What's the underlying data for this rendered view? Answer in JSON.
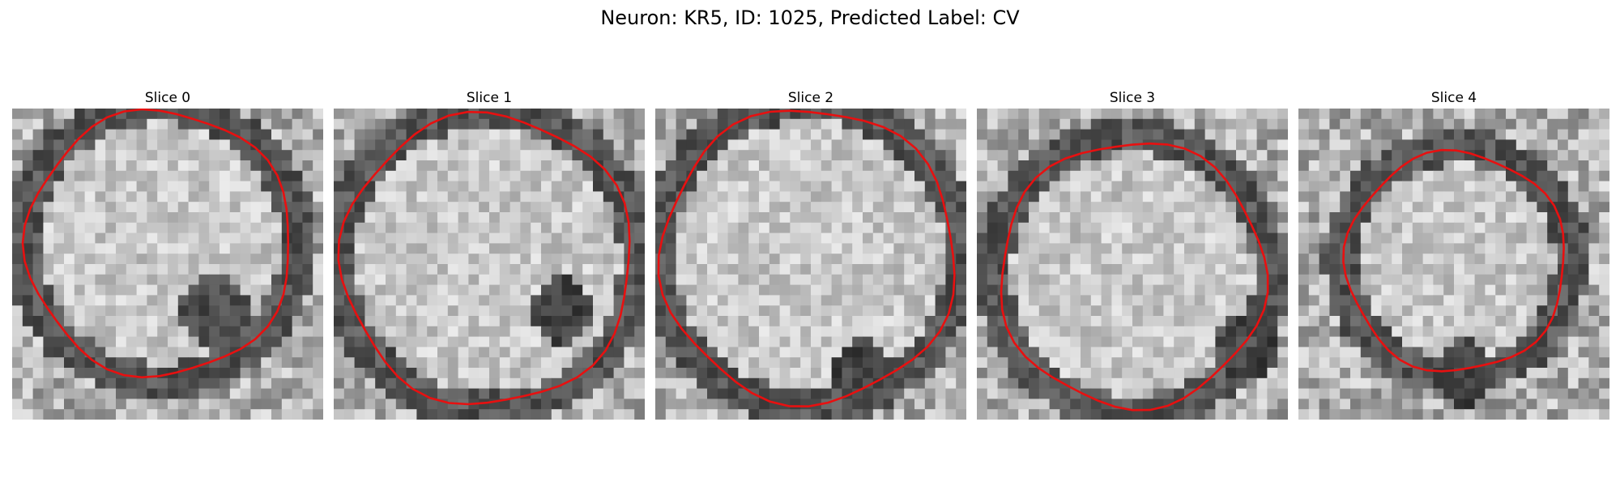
{
  "title": "Neuron: KR5, ID: 1025, Predicted Label: CV",
  "panels": [
    {
      "title": "Slice 0"
    },
    {
      "title": "Slice 1"
    },
    {
      "title": "Slice 2"
    },
    {
      "title": "Slice 3"
    },
    {
      "title": "Slice 4"
    }
  ],
  "colors": {
    "contour": "#e81010",
    "background": "#ffffff"
  }
}
